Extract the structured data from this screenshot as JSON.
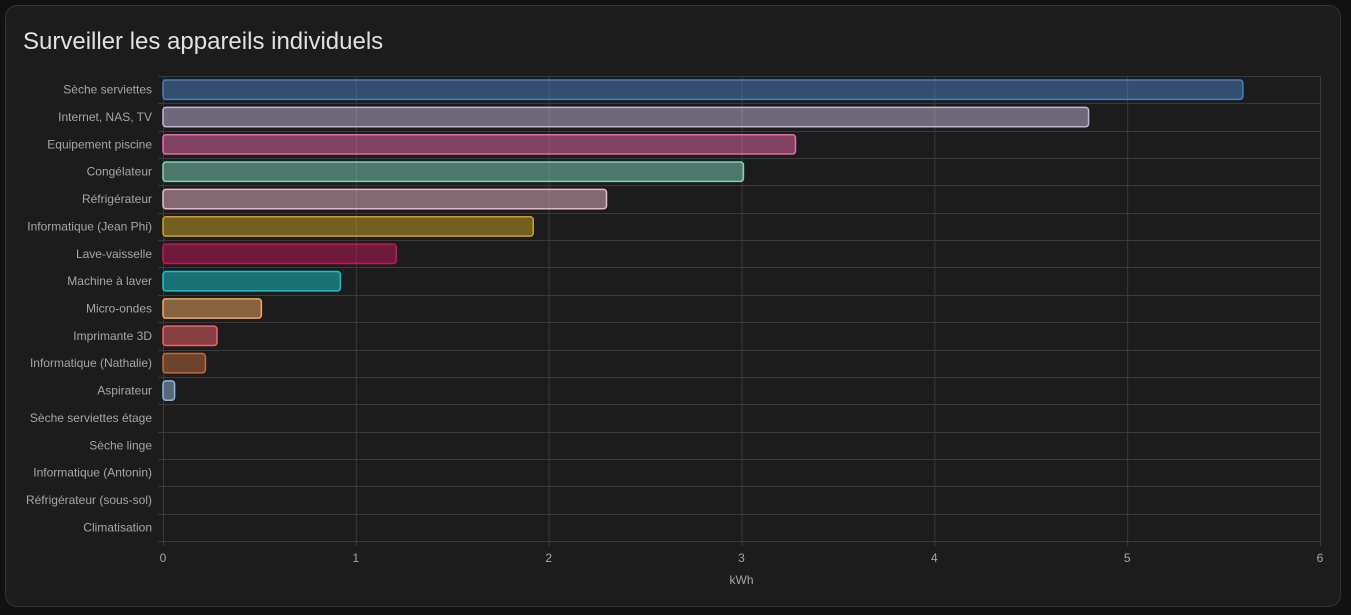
{
  "card": {
    "title": "Surveiller les appareils individuels"
  },
  "chart_data": {
    "type": "bar",
    "orientation": "horizontal",
    "title": "",
    "xlabel": "kWh",
    "ylabel": "",
    "xlim": [
      0,
      6
    ],
    "xticks": [
      0,
      1,
      2,
      3,
      4,
      5,
      6
    ],
    "grid": true,
    "legend": "none",
    "categories": [
      "Sèche serviettes",
      "Internet, NAS, TV",
      "Equipement piscine",
      "Congélateur",
      "Réfrigérateur",
      "Informatique (Jean Phi)",
      "Lave-vaisselle",
      "Machine à laver",
      "Micro-ondes",
      "Imprimante 3D",
      "Informatique (Nathalie)",
      "Aspirateur",
      "Sèche serviettes étage",
      "Sèche linge",
      "Informatique (Antonin)",
      "Réfrigérateur (sous-sol)",
      "Climatisation"
    ],
    "values": [
      5.6,
      4.8,
      3.28,
      3.01,
      2.3,
      1.92,
      1.21,
      0.92,
      0.51,
      0.28,
      0.22,
      0.06,
      0,
      0,
      0,
      0,
      0
    ],
    "colors": [
      "#4a7fbf",
      "#c0b5d8",
      "#e86aa8",
      "#7fd1b9",
      "#e8b6c8",
      "#c9a227",
      "#c2185b",
      "#18c3c9",
      "#f0a860",
      "#f0646c",
      "#c06a3a",
      "#8fb4e0",
      "#7f7fff",
      "#6fbf73",
      "#d6a0ff",
      "#ffd54f",
      "#4dd0e1"
    ]
  }
}
